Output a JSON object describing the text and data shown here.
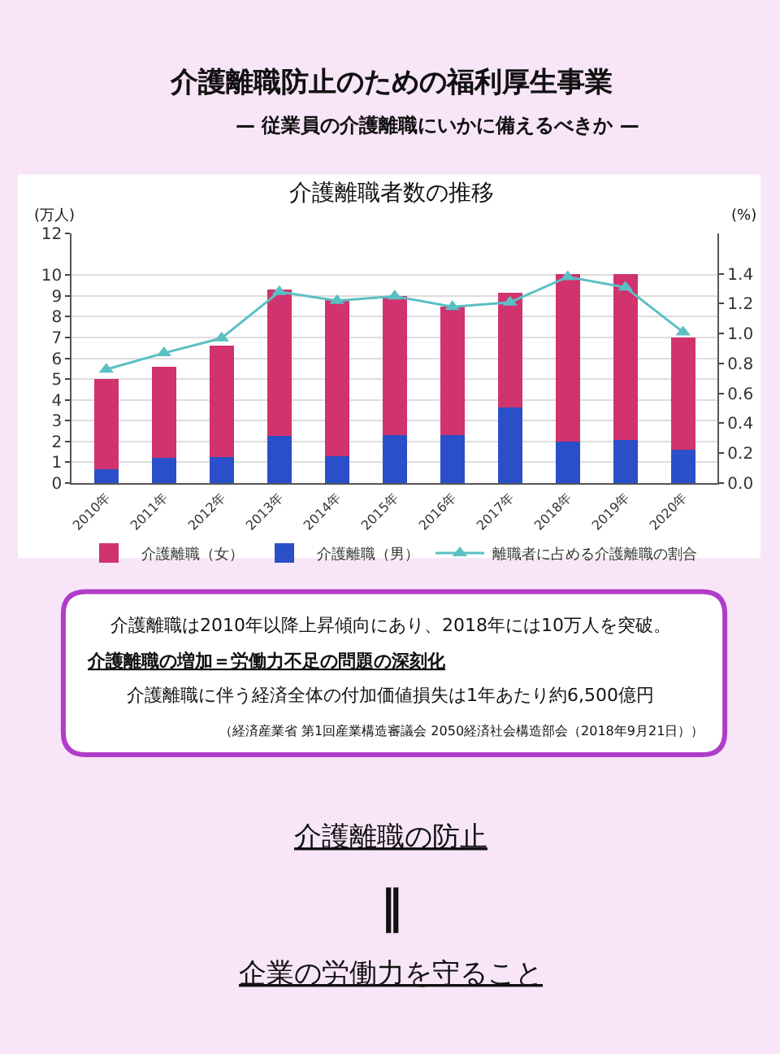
{
  "chart_data": {
    "type": "bar",
    "title": "介護離職者数の推移",
    "ylabel": "(万人)",
    "y2label": "(%)",
    "categories": [
      "2010年",
      "2011年",
      "2012年",
      "2013年",
      "2014年",
      "2015年",
      "2016年",
      "2017年",
      "2018年",
      "2019年",
      "2020年"
    ],
    "stacked": true,
    "series": [
      {
        "name": "介護離職（男）",
        "color": "#2a4fc8",
        "values": [
          0.65,
          1.2,
          1.25,
          2.25,
          1.3,
          2.3,
          2.3,
          3.65,
          2.0,
          2.05,
          1.6
        ]
      },
      {
        "name": "介護離職（女）",
        "color": "#d0336e",
        "values": [
          4.35,
          4.4,
          5.35,
          7.05,
          7.5,
          6.7,
          6.2,
          5.5,
          8.05,
          8.0,
          5.4
        ]
      },
      {
        "name": "離職者に占める介護離職の割合",
        "type": "line",
        "axis": "y2",
        "color": "#5bbfc4",
        "marker": "triangle",
        "values": [
          0.76,
          0.87,
          0.97,
          1.28,
          1.22,
          1.25,
          1.18,
          1.21,
          1.38,
          1.31,
          1.01
        ]
      }
    ],
    "ylim": [
      0,
      12
    ],
    "yticks": [
      0,
      1,
      2,
      3,
      4,
      5,
      6,
      7,
      8,
      9,
      10,
      12
    ],
    "y2lim": [
      0,
      1.67
    ],
    "y2ticks": [
      {
        "value": 0,
        "label": "0.0"
      },
      0.2,
      0.4,
      0.6,
      0.8,
      {
        "value": 1,
        "label": "1.0"
      },
      1.2,
      1.4
    ],
    "grid": "y",
    "legend": "bottom",
    "annotations": [
      "介護離職防止のための福利厚生事業",
      "— 従業員の介護離職にいかに備えるべきか —",
      "介護離職は2010年以降上昇傾向にあり、2018年には10万人を突破。",
      "介護離職の増加＝労働力不足の問題の深刻化",
      "介護離職に伴う経済全体の付加価値損失は1年あたり約6,500億円",
      "（経済産業省 第1回産業構造審議会 2050経済社会構造部会（2018年9月21日））",
      "介護離職の防止",
      "‖",
      "企業の労働力を守ること"
    ]
  }
}
